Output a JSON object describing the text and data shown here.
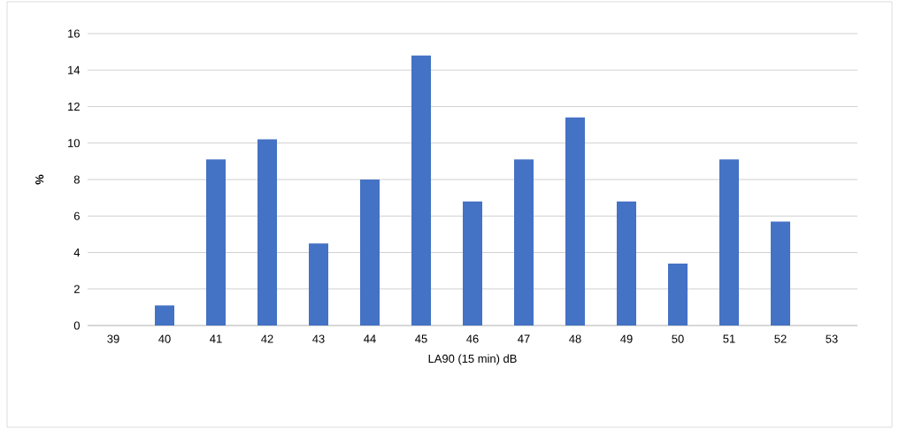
{
  "chart_data": {
    "type": "bar",
    "xlabel": "LA90 (15 min) dB",
    "ylabel": "%",
    "categories": [
      "39",
      "40",
      "41",
      "42",
      "43",
      "44",
      "45",
      "46",
      "47",
      "48",
      "49",
      "50",
      "51",
      "52",
      "53"
    ],
    "values": [
      0,
      1.1,
      9.1,
      10.2,
      4.5,
      8.0,
      14.8,
      6.8,
      9.1,
      11.4,
      6.8,
      3.4,
      9.1,
      5.7,
      0
    ],
    "color": "#4472c4",
    "ylim": [
      0,
      16
    ],
    "yticks": [
      0,
      2,
      4,
      6,
      8,
      10,
      12,
      14,
      16
    ],
    "grid": "y"
  }
}
